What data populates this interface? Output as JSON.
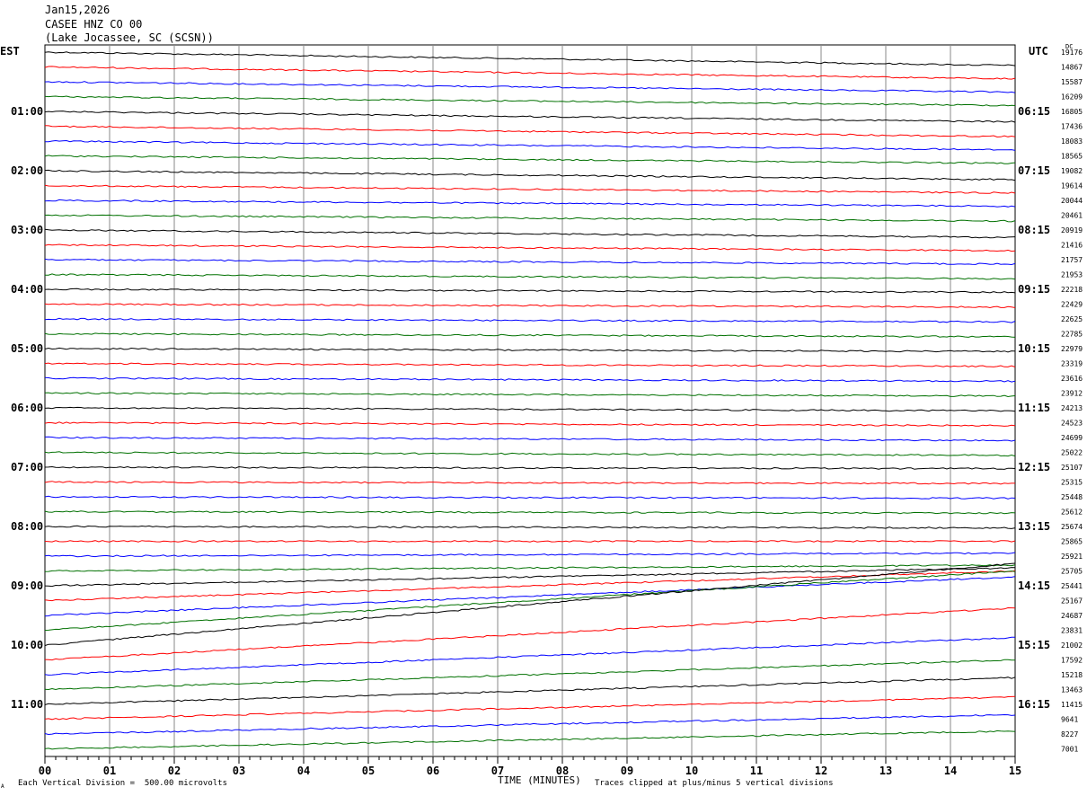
{
  "header": {
    "date": "Jan15,2026",
    "station": "CASEE HNZ CO 00",
    "location": "(Lake Jocassee, SC (SCSN))"
  },
  "left_timezone": "EST",
  "right_timezone": "UTC",
  "dc_label": "DC",
  "footer": {
    "scale": "Each Vertical Division =  500.00 microvolts",
    "clip": "Traces clipped at plus/minus 5 vertical divisions",
    "corner_mark": "A"
  },
  "colors": {
    "trace_cycle": [
      "#000000",
      "#ff0000",
      "#0000ff",
      "#007000"
    ],
    "grid": "#888888"
  },
  "chart_data": {
    "type": "line",
    "title": "Jan15,2026 CASEE HNZ CO 00 (Lake Jocassee, SC (SCSN))",
    "xlabel": "TIME (MINUTES)",
    "xlim": [
      0,
      15
    ],
    "x_ticks": [
      "00",
      "01",
      "02",
      "03",
      "04",
      "05",
      "06",
      "07",
      "08",
      "09",
      "10",
      "11",
      "12",
      "13",
      "14",
      "15"
    ],
    "trace_count": 48,
    "left_hour_labels": [
      "01:00",
      "02:00",
      "03:00",
      "04:00",
      "05:00",
      "06:00",
      "07:00",
      "08:00",
      "09:00",
      "10:00",
      "11:00"
    ],
    "right_hour_labels": [
      "06:15",
      "07:15",
      "08:15",
      "09:15",
      "10:15",
      "11:15",
      "12:15",
      "13:15",
      "14:15",
      "15:15",
      "16:15"
    ],
    "dc_offsets": [
      "19176",
      "14867",
      "15587",
      "16209",
      "16805",
      "17436",
      "18083",
      "18565",
      "19082",
      "19614",
      "20044",
      "20461",
      "20919",
      "21416",
      "21757",
      "21953",
      "22218",
      "22429",
      "22625",
      "22785",
      "22979",
      "23319",
      "23616",
      "23912",
      "24213",
      "24523",
      "24699",
      "25022",
      "25107",
      "25315",
      "25448",
      "25612",
      "25674",
      "25865",
      "25921",
      "25705",
      "25441",
      "25167",
      "24687",
      "23831",
      "21002",
      "17592",
      "15218",
      "13463",
      "11415",
      "9641",
      "8227",
      "7001"
    ],
    "drift_per_15min": [
      -0.9,
      -0.8,
      -0.7,
      -0.6,
      -0.7,
      -0.7,
      -0.6,
      -0.5,
      -0.6,
      -0.5,
      -0.4,
      -0.4,
      -0.5,
      -0.4,
      -0.3,
      -0.3,
      -0.2,
      -0.2,
      -0.2,
      -0.2,
      -0.2,
      -0.2,
      -0.2,
      -0.2,
      -0.2,
      -0.2,
      -0.2,
      -0.2,
      -0.1,
      -0.1,
      -0.1,
      -0.1,
      -0.1,
      0,
      0.2,
      0.4,
      1.2,
      2,
      2.6,
      4,
      5.5,
      3.5,
      2.5,
      2,
      1.8,
      1.5,
      1.3,
      1.2
    ]
  }
}
